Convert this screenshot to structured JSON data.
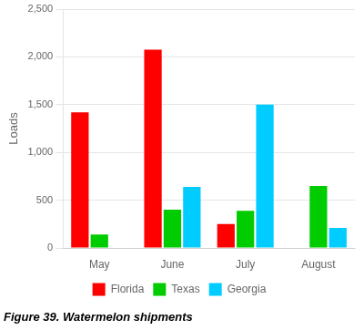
{
  "chart_data": {
    "type": "bar",
    "title": "Figure 39. Watermelon shipments",
    "ylabel": "Loads",
    "categories": [
      "May",
      "June",
      "July",
      "August"
    ],
    "series": [
      {
        "name": "Florida",
        "color": "#ff0000",
        "values": [
          1420,
          2075,
          250,
          0
        ]
      },
      {
        "name": "Texas",
        "color": "#00cc00",
        "values": [
          140,
          400,
          390,
          650
        ]
      },
      {
        "name": "Georgia",
        "color": "#00ccff",
        "values": [
          0,
          640,
          1500,
          210
        ]
      }
    ],
    "ylim": [
      0,
      2500
    ],
    "yticks": [
      0,
      500,
      {
        "value": 1000,
        "label": "1,000"
      },
      {
        "value": 1500,
        "label": "1,500"
      },
      {
        "value": 2000,
        "label": "2,000"
      },
      {
        "value": 2500,
        "label": "2,500"
      }
    ],
    "grid": true,
    "legend": "bottom"
  }
}
